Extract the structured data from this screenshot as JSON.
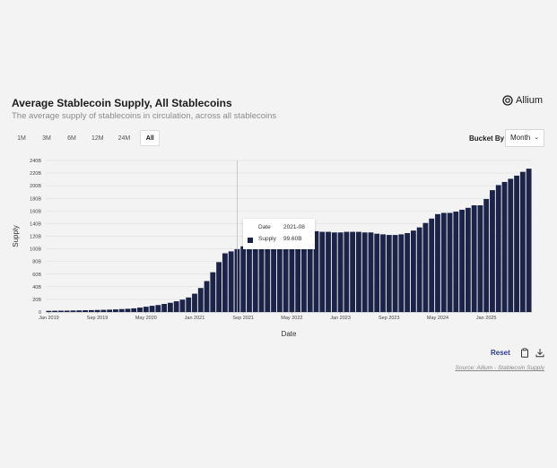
{
  "header": {
    "title": "Average Stablecoin Supply, All Stablecoins",
    "subtitle": "The average supply of stablecoins in circulation, across all stablecoins",
    "brand": "Allium"
  },
  "ranges": [
    "1M",
    "3M",
    "6M",
    "12M",
    "24M",
    "All"
  ],
  "active_range": "All",
  "bucket": {
    "label": "Bucket By",
    "value": "Month"
  },
  "tooltip": {
    "date_label": "Date",
    "date_value": "2021-08",
    "supply_label": "Supply",
    "supply_value": "99.60B"
  },
  "actions": {
    "reset": "Reset"
  },
  "source": "Source: Allium - Stablecoin Supply",
  "colors": {
    "bar": "#1b2348",
    "bg": "#f3f3f3",
    "accent": "#2b3d8f"
  },
  "chart_data": {
    "type": "bar",
    "title": "Average Stablecoin Supply, All Stablecoins",
    "xlabel": "Date",
    "ylabel": "Supply",
    "ylim": [
      0,
      240
    ],
    "yticks": [
      0,
      20,
      40,
      60,
      80,
      100,
      120,
      140,
      160,
      180,
      200,
      220,
      240
    ],
    "ytick_labels": [
      "0",
      "20B",
      "40B",
      "60B",
      "80B",
      "100B",
      "120B",
      "140B",
      "160B",
      "180B",
      "200B",
      "220B",
      "240B"
    ],
    "xtick_labels": [
      "Jan 2019",
      "Sep 2019",
      "May 2020",
      "Jan 2021",
      "Sep 2021",
      "May 2022",
      "Jan 2023",
      "Sep 2023",
      "May 2024",
      "Jan 2025"
    ],
    "xtick_indices": [
      0,
      8,
      16,
      24,
      32,
      40,
      48,
      56,
      64,
      72
    ],
    "unit": "Billions USD",
    "categories": [
      "2019-01",
      "2019-02",
      "2019-03",
      "2019-04",
      "2019-05",
      "2019-06",
      "2019-07",
      "2019-08",
      "2019-09",
      "2019-10",
      "2019-11",
      "2019-12",
      "2020-01",
      "2020-02",
      "2020-03",
      "2020-04",
      "2020-05",
      "2020-06",
      "2020-07",
      "2020-08",
      "2020-09",
      "2020-10",
      "2020-11",
      "2020-12",
      "2021-01",
      "2021-02",
      "2021-03",
      "2021-04",
      "2021-05",
      "2021-06",
      "2021-07",
      "2021-08",
      "2021-09",
      "2021-10",
      "2021-11",
      "2021-12",
      "2022-01",
      "2022-02",
      "2022-03",
      "2022-04",
      "2022-05",
      "2022-06",
      "2022-07",
      "2022-08",
      "2022-09",
      "2022-10",
      "2022-11",
      "2022-12",
      "2023-01",
      "2023-02",
      "2023-03",
      "2023-04",
      "2023-05",
      "2023-06",
      "2023-07",
      "2023-08",
      "2023-09",
      "2023-10",
      "2023-11",
      "2023-12",
      "2024-01",
      "2024-02",
      "2024-03",
      "2024-04",
      "2024-05",
      "2024-06",
      "2024-07",
      "2024-08",
      "2024-09",
      "2024-10",
      "2024-11",
      "2024-12",
      "2025-01",
      "2025-02",
      "2025-03",
      "2025-04",
      "2025-05",
      "2025-06",
      "2025-07",
      "2025-08"
    ],
    "values": [
      1.8,
      2.0,
      2.1,
      2.2,
      2.4,
      2.6,
      2.8,
      3.0,
      3.2,
      3.4,
      3.7,
      4.1,
      4.6,
      5.1,
      5.8,
      7.0,
      8.4,
      9.8,
      11.0,
      12.8,
      14.6,
      17.0,
      19.6,
      23.0,
      29.0,
      38.0,
      49.0,
      63.0,
      79.0,
      93.0,
      96.0,
      99.6,
      104.0,
      108.0,
      110.0,
      110.0,
      110.0,
      110.0,
      110.0,
      110.0,
      112.0,
      130.0,
      130.0,
      132.0,
      128.0,
      127.0,
      127.0,
      126.0,
      126.0,
      127.0,
      127.0,
      127.0,
      126.0,
      126.0,
      124.0,
      123.0,
      122.0,
      122.0,
      123.0,
      125.0,
      129.0,
      134.0,
      141.0,
      148.0,
      155.0,
      157.0,
      157.0,
      159.0,
      162.0,
      165.0,
      169.0,
      169.0,
      179.0,
      193.0,
      201.0,
      206.0,
      211.0,
      216.0,
      222.0,
      227.0
    ]
  }
}
